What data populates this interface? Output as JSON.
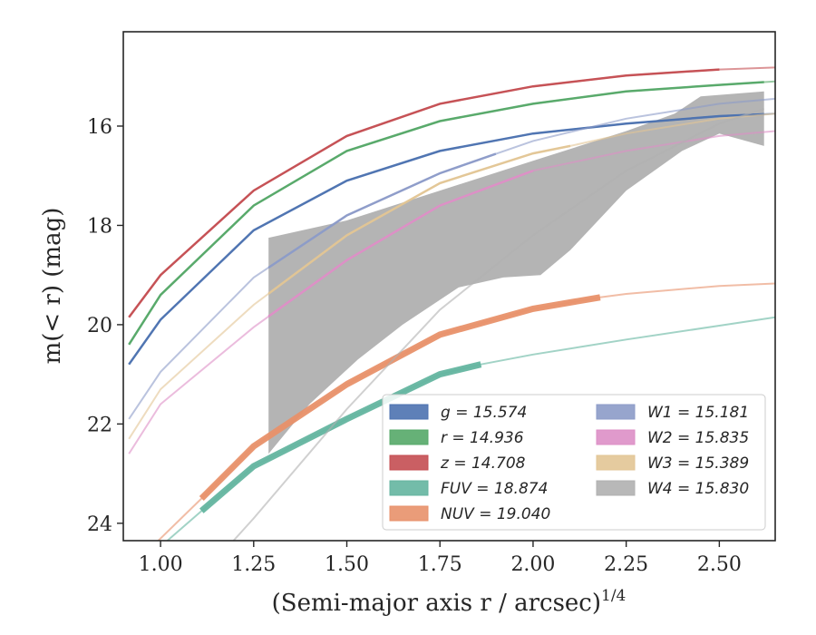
{
  "chart_data": {
    "type": "line",
    "xlabel": "(Semi-major axis r / arcsec)",
    "xlabel_sup": "1/4",
    "ylabel": "m(< r) (mag)",
    "xlim": [
      0.9,
      2.65
    ],
    "ylim": [
      24.35,
      14.1
    ],
    "y_inverted": true,
    "x_ticks": [
      "1.00",
      "1.25",
      "1.50",
      "1.75",
      "2.00",
      "2.25",
      "2.50"
    ],
    "y_ticks": [
      "16",
      "18",
      "20",
      "22",
      "24"
    ],
    "grid": false,
    "legend_placement": "lower-right",
    "series": [
      {
        "name": "g = 15.574",
        "color": "#4c72b0",
        "m_inf": 15.574,
        "obs_range": [
          0.915,
          2.62
        ],
        "points": [
          [
            0.915,
            20.8
          ],
          [
            1.0,
            19.9
          ],
          [
            1.25,
            18.1
          ],
          [
            1.5,
            17.1
          ],
          [
            1.75,
            16.5
          ],
          [
            2.0,
            16.15
          ],
          [
            2.25,
            15.95
          ],
          [
            2.5,
            15.8
          ],
          [
            2.65,
            15.75
          ]
        ]
      },
      {
        "name": "r = 14.936",
        "color": "#55a868",
        "m_inf": 14.936,
        "obs_range": [
          0.915,
          2.62
        ],
        "points": [
          [
            0.915,
            20.4
          ],
          [
            1.0,
            19.4
          ],
          [
            1.25,
            17.6
          ],
          [
            1.5,
            16.5
          ],
          [
            1.75,
            15.9
          ],
          [
            2.0,
            15.55
          ],
          [
            2.25,
            15.3
          ],
          [
            2.5,
            15.17
          ],
          [
            2.65,
            15.1
          ]
        ]
      },
      {
        "name": "z = 14.708",
        "color": "#c44e52",
        "m_inf": 14.708,
        "obs_range": [
          0.915,
          2.5
        ],
        "points": [
          [
            0.915,
            19.85
          ],
          [
            1.0,
            19.0
          ],
          [
            1.25,
            17.3
          ],
          [
            1.5,
            16.2
          ],
          [
            1.75,
            15.55
          ],
          [
            2.0,
            15.2
          ],
          [
            2.25,
            14.98
          ],
          [
            2.5,
            14.86
          ],
          [
            2.65,
            14.82
          ]
        ]
      },
      {
        "name": "FUV = 18.874",
        "color": "#64b5a0",
        "m_inf": 18.874,
        "obs_range": [
          1.11,
          1.86
        ],
        "points": [
          [
            0.98,
            24.6
          ],
          [
            1.11,
            23.75
          ],
          [
            1.25,
            22.85
          ],
          [
            1.5,
            21.9
          ],
          [
            1.75,
            21.0
          ],
          [
            1.86,
            20.8
          ],
          [
            2.0,
            20.6
          ],
          [
            2.25,
            20.3
          ],
          [
            2.5,
            20.02
          ],
          [
            2.65,
            19.85
          ]
        ]
      },
      {
        "name": "NUV = 19.040",
        "color": "#e8916a",
        "m_inf": 19.04,
        "obs_range": [
          1.11,
          2.18
        ],
        "points": [
          [
            0.98,
            24.45
          ],
          [
            1.11,
            23.5
          ],
          [
            1.25,
            22.45
          ],
          [
            1.5,
            21.2
          ],
          [
            1.75,
            20.2
          ],
          [
            2.0,
            19.68
          ],
          [
            2.18,
            19.45
          ],
          [
            2.25,
            19.38
          ],
          [
            2.5,
            19.22
          ],
          [
            2.65,
            19.17
          ]
        ]
      },
      {
        "name": "W1 = 15.181",
        "color": "#8c9bc8",
        "m_inf": 15.181,
        "obs_range": [
          1.29,
          1.9
        ],
        "points": [
          [
            0.915,
            21.9
          ],
          [
            1.0,
            20.95
          ],
          [
            1.25,
            19.05
          ],
          [
            1.5,
            17.8
          ],
          [
            1.75,
            16.95
          ],
          [
            2.0,
            16.3
          ],
          [
            2.25,
            15.85
          ],
          [
            2.5,
            15.55
          ],
          [
            2.65,
            15.45
          ]
        ]
      },
      {
        "name": "W2 = 15.835",
        "color": "#dd8fc6",
        "m_inf": 15.835,
        "obs_range": [
          1.29,
          2.0
        ],
        "points": [
          [
            0.915,
            22.6
          ],
          [
            1.0,
            21.6
          ],
          [
            1.25,
            20.05
          ],
          [
            1.5,
            18.7
          ],
          [
            1.75,
            17.6
          ],
          [
            2.0,
            16.9
          ],
          [
            2.25,
            16.5
          ],
          [
            2.5,
            16.2
          ],
          [
            2.65,
            16.1
          ]
        ]
      },
      {
        "name": "W3 = 15.389",
        "color": "#e2c595",
        "m_inf": 15.389,
        "obs_range": [
          1.29,
          2.1
        ],
        "points": [
          [
            0.915,
            22.3
          ],
          [
            1.0,
            21.3
          ],
          [
            1.25,
            19.6
          ],
          [
            1.5,
            18.2
          ],
          [
            1.75,
            17.15
          ],
          [
            2.0,
            16.55
          ],
          [
            2.1,
            16.4
          ],
          [
            2.25,
            16.15
          ],
          [
            2.5,
            15.85
          ],
          [
            2.65,
            15.75
          ]
        ]
      },
      {
        "name": "W4 = 15.830",
        "color": "#b0b0b0",
        "m_inf": 15.83,
        "obs_range": [
          1.29,
          2.62
        ],
        "points": [
          [
            1.19,
            24.4
          ],
          [
            1.25,
            23.9
          ],
          [
            1.5,
            21.7
          ],
          [
            1.75,
            19.7
          ],
          [
            2.0,
            18.2
          ],
          [
            2.25,
            16.9
          ],
          [
            2.5,
            15.95
          ],
          [
            2.62,
            15.65
          ]
        ],
        "band_upper": [
          [
            1.29,
            18.25
          ],
          [
            1.5,
            17.9
          ],
          [
            1.75,
            17.3
          ],
          [
            2.0,
            16.7
          ],
          [
            2.25,
            16.1
          ],
          [
            2.38,
            15.75
          ],
          [
            2.45,
            15.4
          ],
          [
            2.62,
            15.3
          ]
        ],
        "band_lower": [
          [
            1.29,
            22.6
          ],
          [
            1.4,
            21.6
          ],
          [
            1.53,
            20.7
          ],
          [
            1.65,
            20.0
          ],
          [
            1.8,
            19.25
          ],
          [
            1.92,
            19.05
          ],
          [
            2.02,
            19.0
          ],
          [
            2.1,
            18.5
          ],
          [
            2.25,
            17.3
          ],
          [
            2.4,
            16.5
          ],
          [
            2.5,
            16.15
          ],
          [
            2.62,
            16.4
          ]
        ]
      }
    ]
  }
}
